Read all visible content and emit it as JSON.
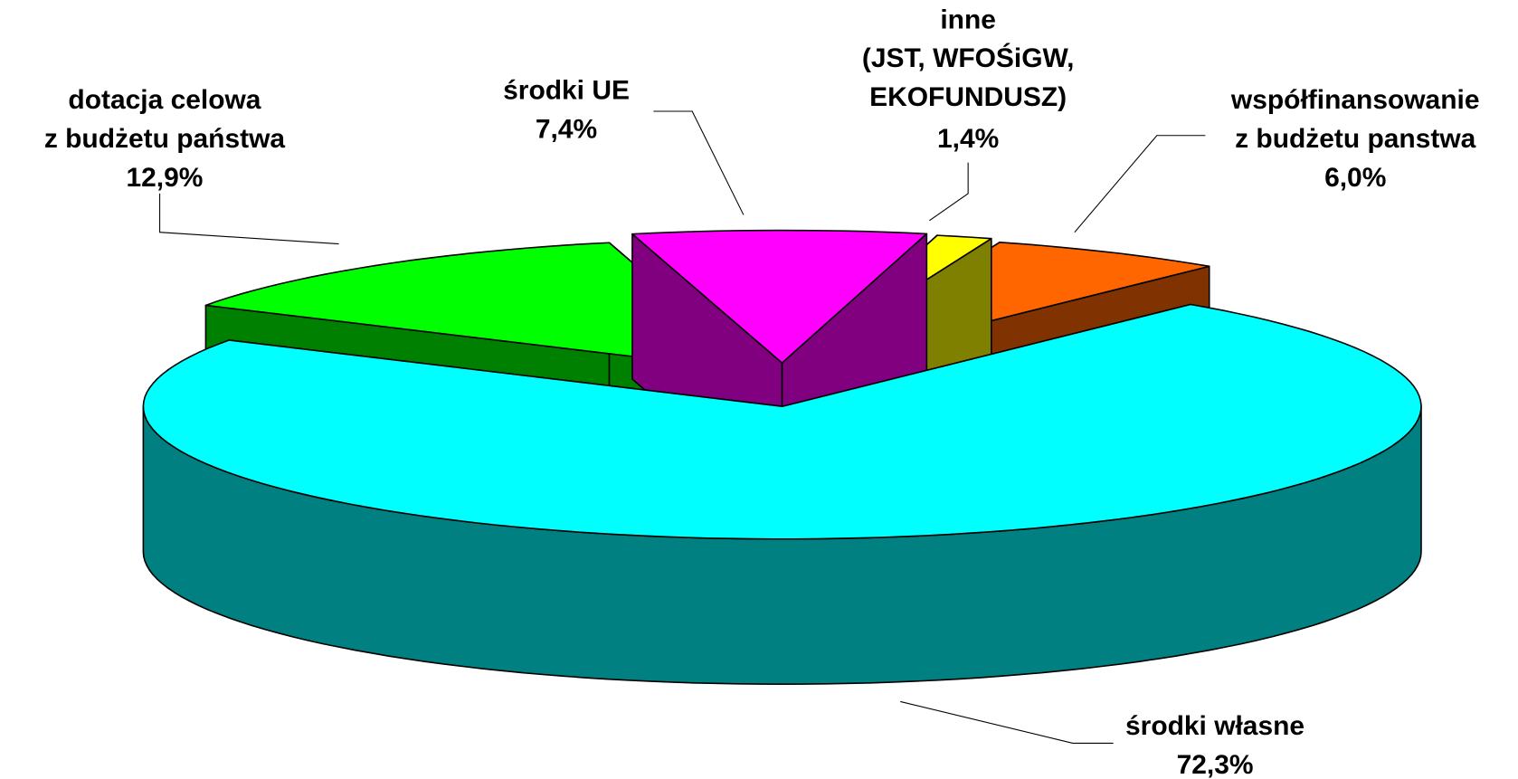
{
  "chart_data": {
    "type": "pie3d",
    "categories": [
      [
        "dotacja celowa",
        "z budżetu państwa"
      ],
      [
        "środki UE"
      ],
      [
        "inne",
        "(JST, WFOŚiGW,",
        "EKOFUNDUSZ)"
      ],
      [
        "współfinansowanie",
        "z budżetu panstwa"
      ],
      [
        "środki własne"
      ]
    ],
    "values": [
      12.9,
      7.4,
      1.4,
      6.0,
      72.3
    ],
    "value_labels": [
      "12,9%",
      "7,4%",
      "1,4%",
      "6,0%",
      "72,3%"
    ],
    "colors": [
      "#00ff00",
      "#ff00ff",
      "#ffff00",
      "#ff6600",
      "#00ffff"
    ]
  }
}
